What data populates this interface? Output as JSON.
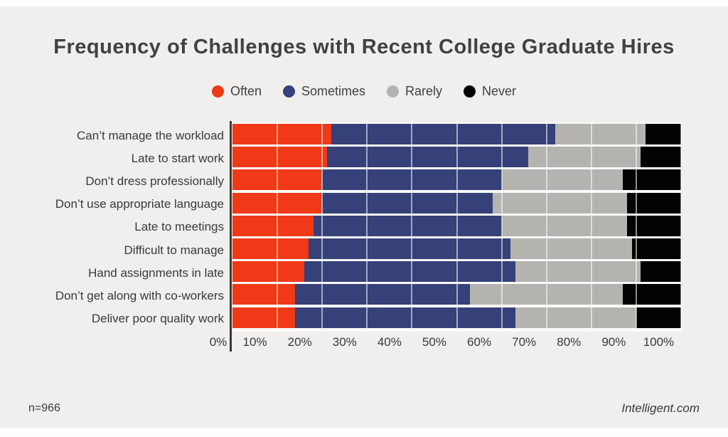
{
  "title": "Frequency of Challenges with Recent College Graduate Hires",
  "footer": {
    "sample_size": "n=966",
    "source": "Intelligent.com"
  },
  "colors": {
    "background": "#f0efed",
    "often": "#ef3917",
    "sometimes": "#354178",
    "rarely": "#b5b3b0",
    "never": "#020202",
    "axis": "#3a3a3c",
    "text": "#414144"
  },
  "chart_data": {
    "type": "bar",
    "stacked": true,
    "orientation": "horizontal",
    "title": "Frequency of Challenges with Recent College Graduate Hires",
    "xlabel": "",
    "ylabel": "",
    "xlim": [
      0,
      100
    ],
    "grid": true,
    "legend_position": "top-center",
    "x_tick_labels": [
      "0%",
      "10%",
      "20%",
      "30%",
      "40%",
      "50%",
      "60%",
      "70%",
      "80%",
      "90%",
      "100%"
    ],
    "categories": [
      "Can’t manage the workload",
      "Late to start work",
      "Don’t dress professionally",
      "Don’t use appropriate language",
      "Late to meetings",
      "Difficult to manage",
      "Hand assignments in late",
      "Don’t get along with co-workers",
      "Deliver poor quality work"
    ],
    "series": [
      {
        "name": "Often",
        "color": "#ef3917",
        "values": [
          22,
          21,
          20,
          20,
          18,
          17,
          16,
          14,
          14
        ]
      },
      {
        "name": "Sometimes",
        "color": "#354178",
        "values": [
          50,
          45,
          40,
          38,
          42,
          45,
          47,
          39,
          49
        ]
      },
      {
        "name": "Rarely",
        "color": "#b5b3b0",
        "values": [
          20,
          25,
          27,
          30,
          28,
          27,
          28,
          34,
          27
        ]
      },
      {
        "name": "Never",
        "color": "#020202",
        "values": [
          8,
          9,
          13,
          12,
          12,
          11,
          9,
          13,
          10
        ]
      }
    ]
  }
}
